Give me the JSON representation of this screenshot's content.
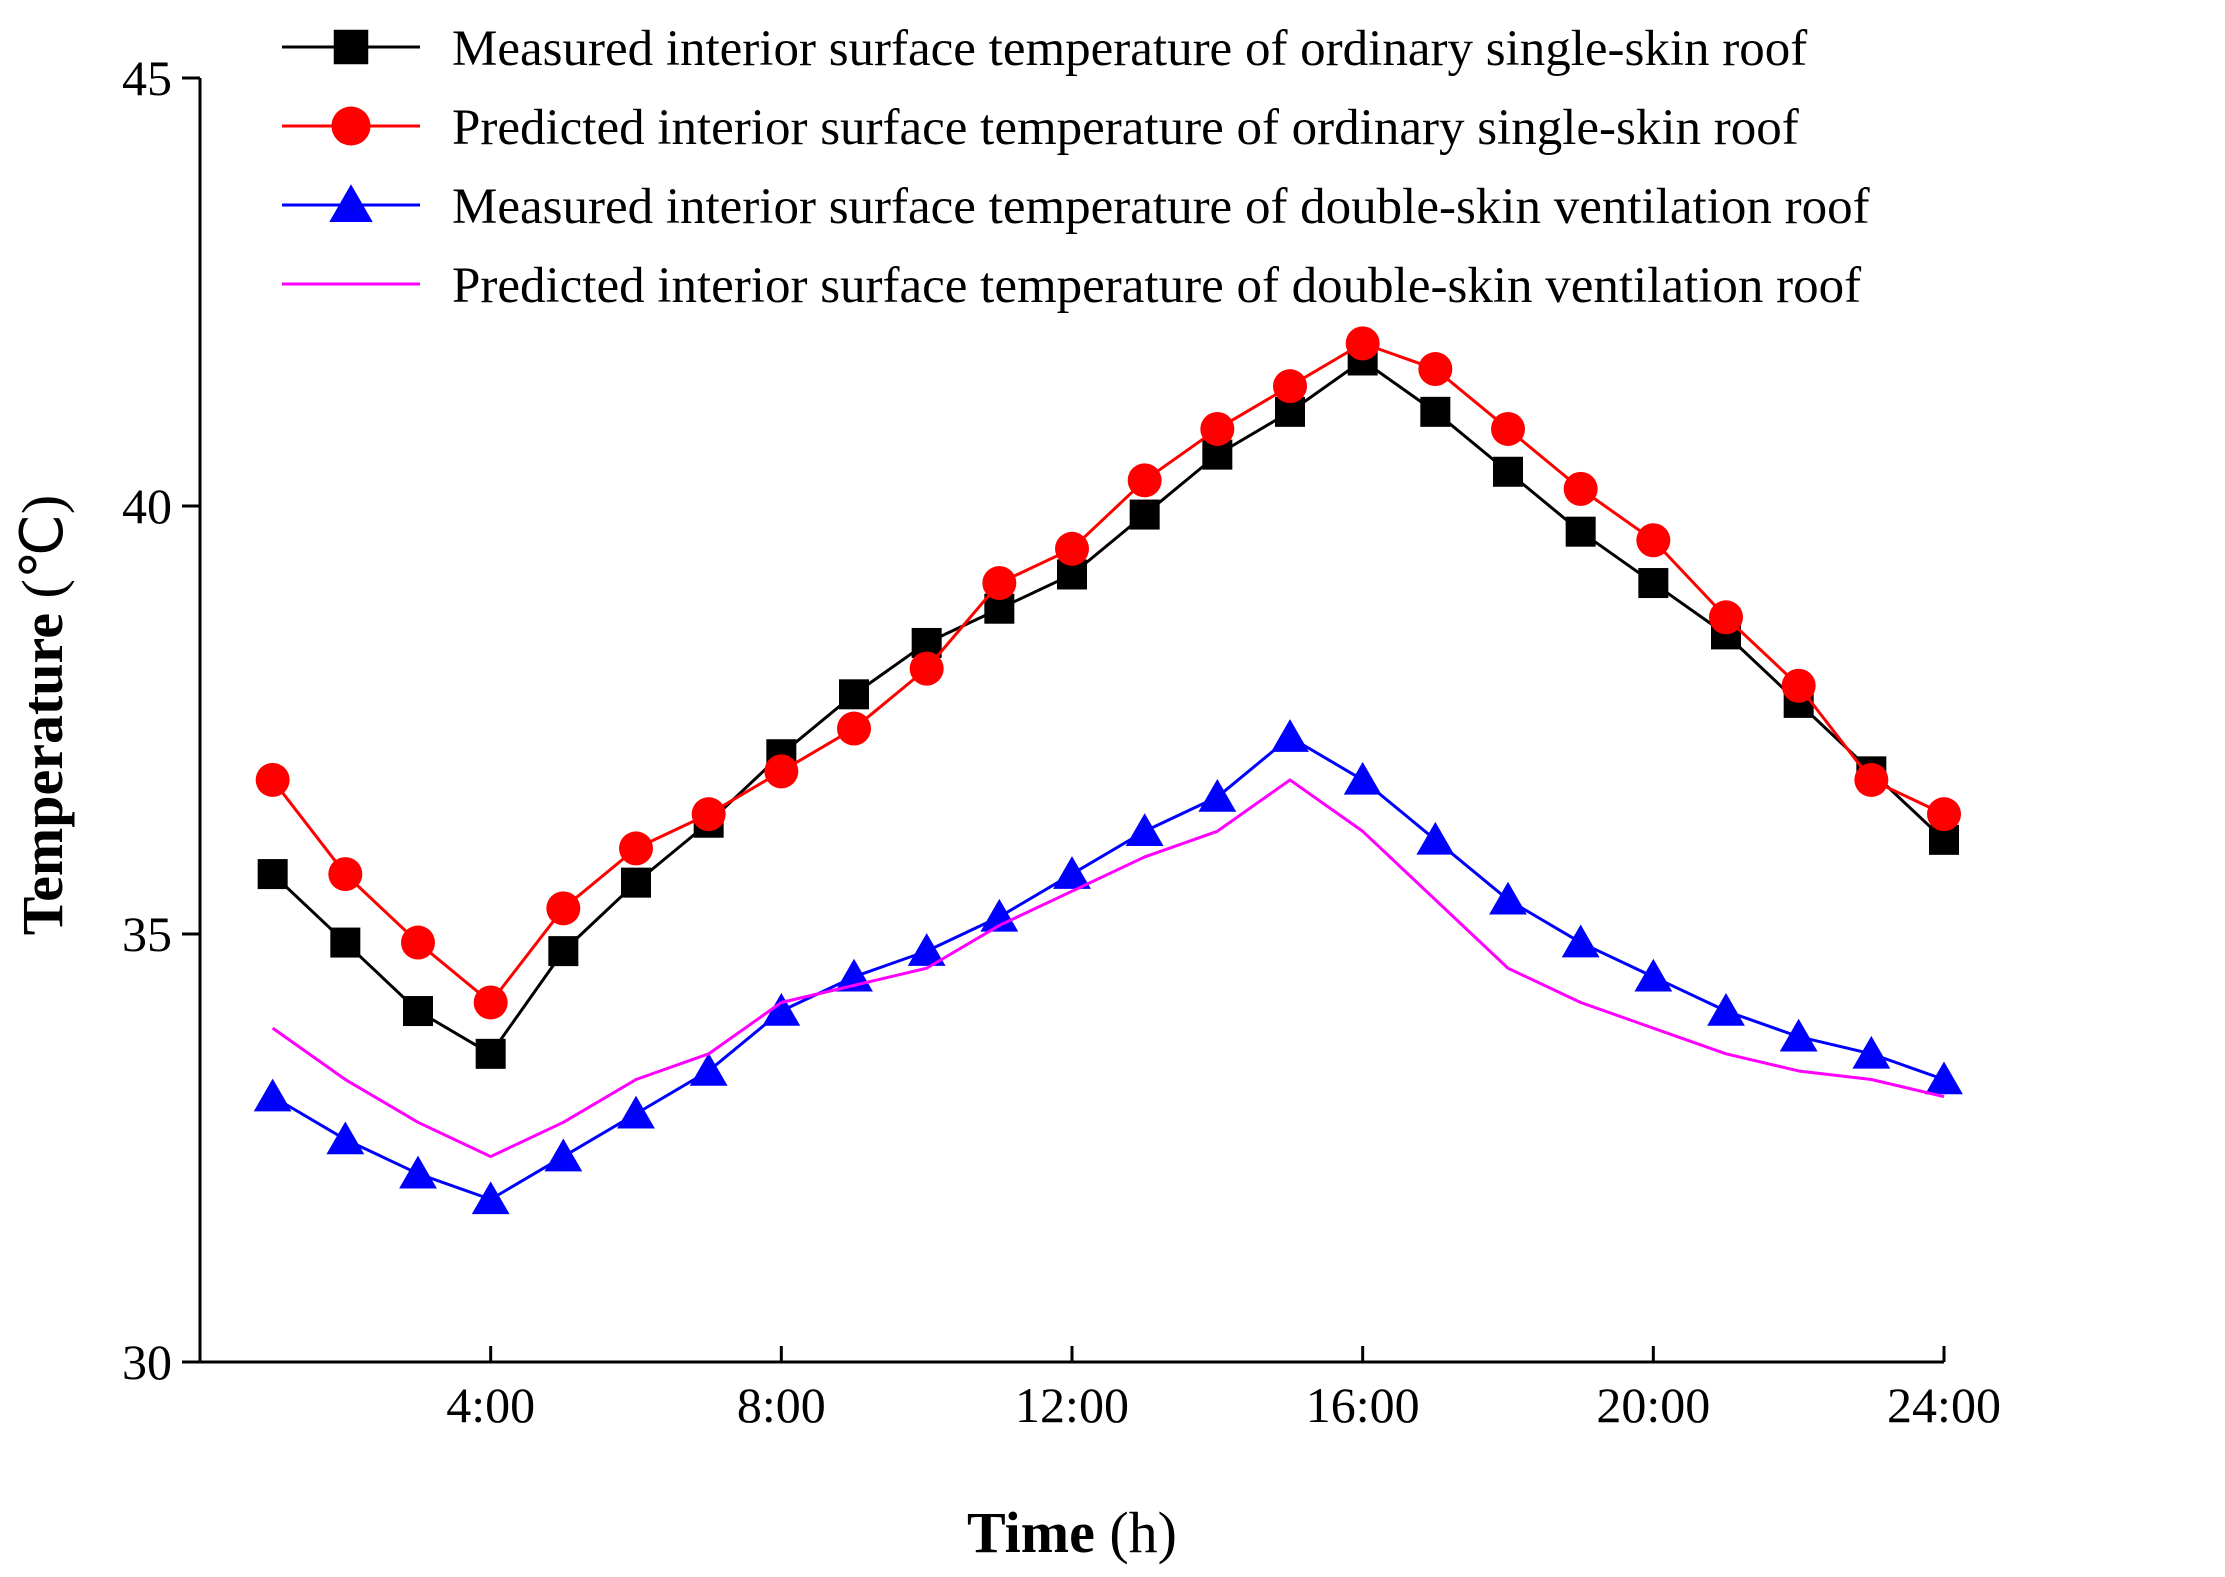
{
  "chart_data": {
    "type": "line",
    "title": "",
    "xlabel": "Time",
    "xlabel_unit": "(h)",
    "ylabel": "Temperature",
    "ylabel_unit": "(℃)",
    "xlim": [
      0,
      24
    ],
    "ylim": [
      30,
      45
    ],
    "grid": false,
    "legend_position": "top",
    "x": [
      1,
      2,
      3,
      4,
      5,
      6,
      7,
      8,
      9,
      10,
      11,
      12,
      13,
      14,
      15,
      16,
      17,
      18,
      19,
      20,
      21,
      22,
      23,
      24
    ],
    "x_ticks": [
      {
        "value": 4,
        "label": "4:00"
      },
      {
        "value": 8,
        "label": "8:00"
      },
      {
        "value": 12,
        "label": "12:00"
      },
      {
        "value": 16,
        "label": "16:00"
      },
      {
        "value": 20,
        "label": "20:00"
      },
      {
        "value": 24,
        "label": "24:00"
      }
    ],
    "y_ticks": [
      {
        "value": 30,
        "label": "30"
      },
      {
        "value": 35,
        "label": "35"
      },
      {
        "value": 40,
        "label": "40"
      },
      {
        "value": 45,
        "label": "45"
      }
    ],
    "series": [
      {
        "name": "Measured interior surface temperature of ordinary single-skin roof",
        "color": "#000000",
        "marker": "square",
        "values": [
          35.7,
          34.9,
          34.1,
          33.6,
          34.8,
          35.6,
          36.3,
          37.1,
          37.8,
          38.4,
          38.8,
          39.2,
          39.9,
          40.6,
          41.1,
          41.7,
          41.1,
          40.4,
          39.7,
          39.1,
          38.5,
          37.7,
          36.9,
          36.1
        ]
      },
      {
        "name": "Predicted interior surface temperature of ordinary  single-skin roof",
        "color": "#ff0000",
        "marker": "circle",
        "values": [
          36.8,
          35.7,
          34.9,
          34.2,
          35.3,
          36.0,
          36.4,
          36.9,
          37.4,
          38.1,
          39.1,
          39.5,
          40.3,
          40.9,
          41.4,
          41.9,
          41.6,
          40.9,
          40.2,
          39.6,
          38.7,
          37.9,
          36.8,
          36.4
        ]
      },
      {
        "name": "Measured interior surface temperature of double-skin ventilation roof",
        "color": "#0000ff",
        "marker": "triangle",
        "values": [
          33.1,
          32.6,
          32.2,
          31.9,
          32.4,
          32.9,
          33.4,
          34.1,
          34.5,
          34.8,
          35.2,
          35.7,
          36.2,
          36.6,
          37.3,
          36.8,
          36.1,
          35.4,
          34.9,
          34.5,
          34.1,
          33.8,
          33.6,
          33.3
        ]
      },
      {
        "name": "Predicted interior surface temperature of double-skin ventilation roof",
        "color": "#ff00ff",
        "marker": "none",
        "values": [
          33.9,
          33.3,
          32.8,
          32.4,
          32.8,
          33.3,
          33.6,
          34.2,
          34.4,
          34.6,
          35.1,
          35.5,
          35.9,
          36.2,
          36.8,
          36.2,
          35.4,
          34.6,
          34.2,
          33.9,
          33.6,
          33.4,
          33.3,
          33.1
        ]
      }
    ]
  }
}
